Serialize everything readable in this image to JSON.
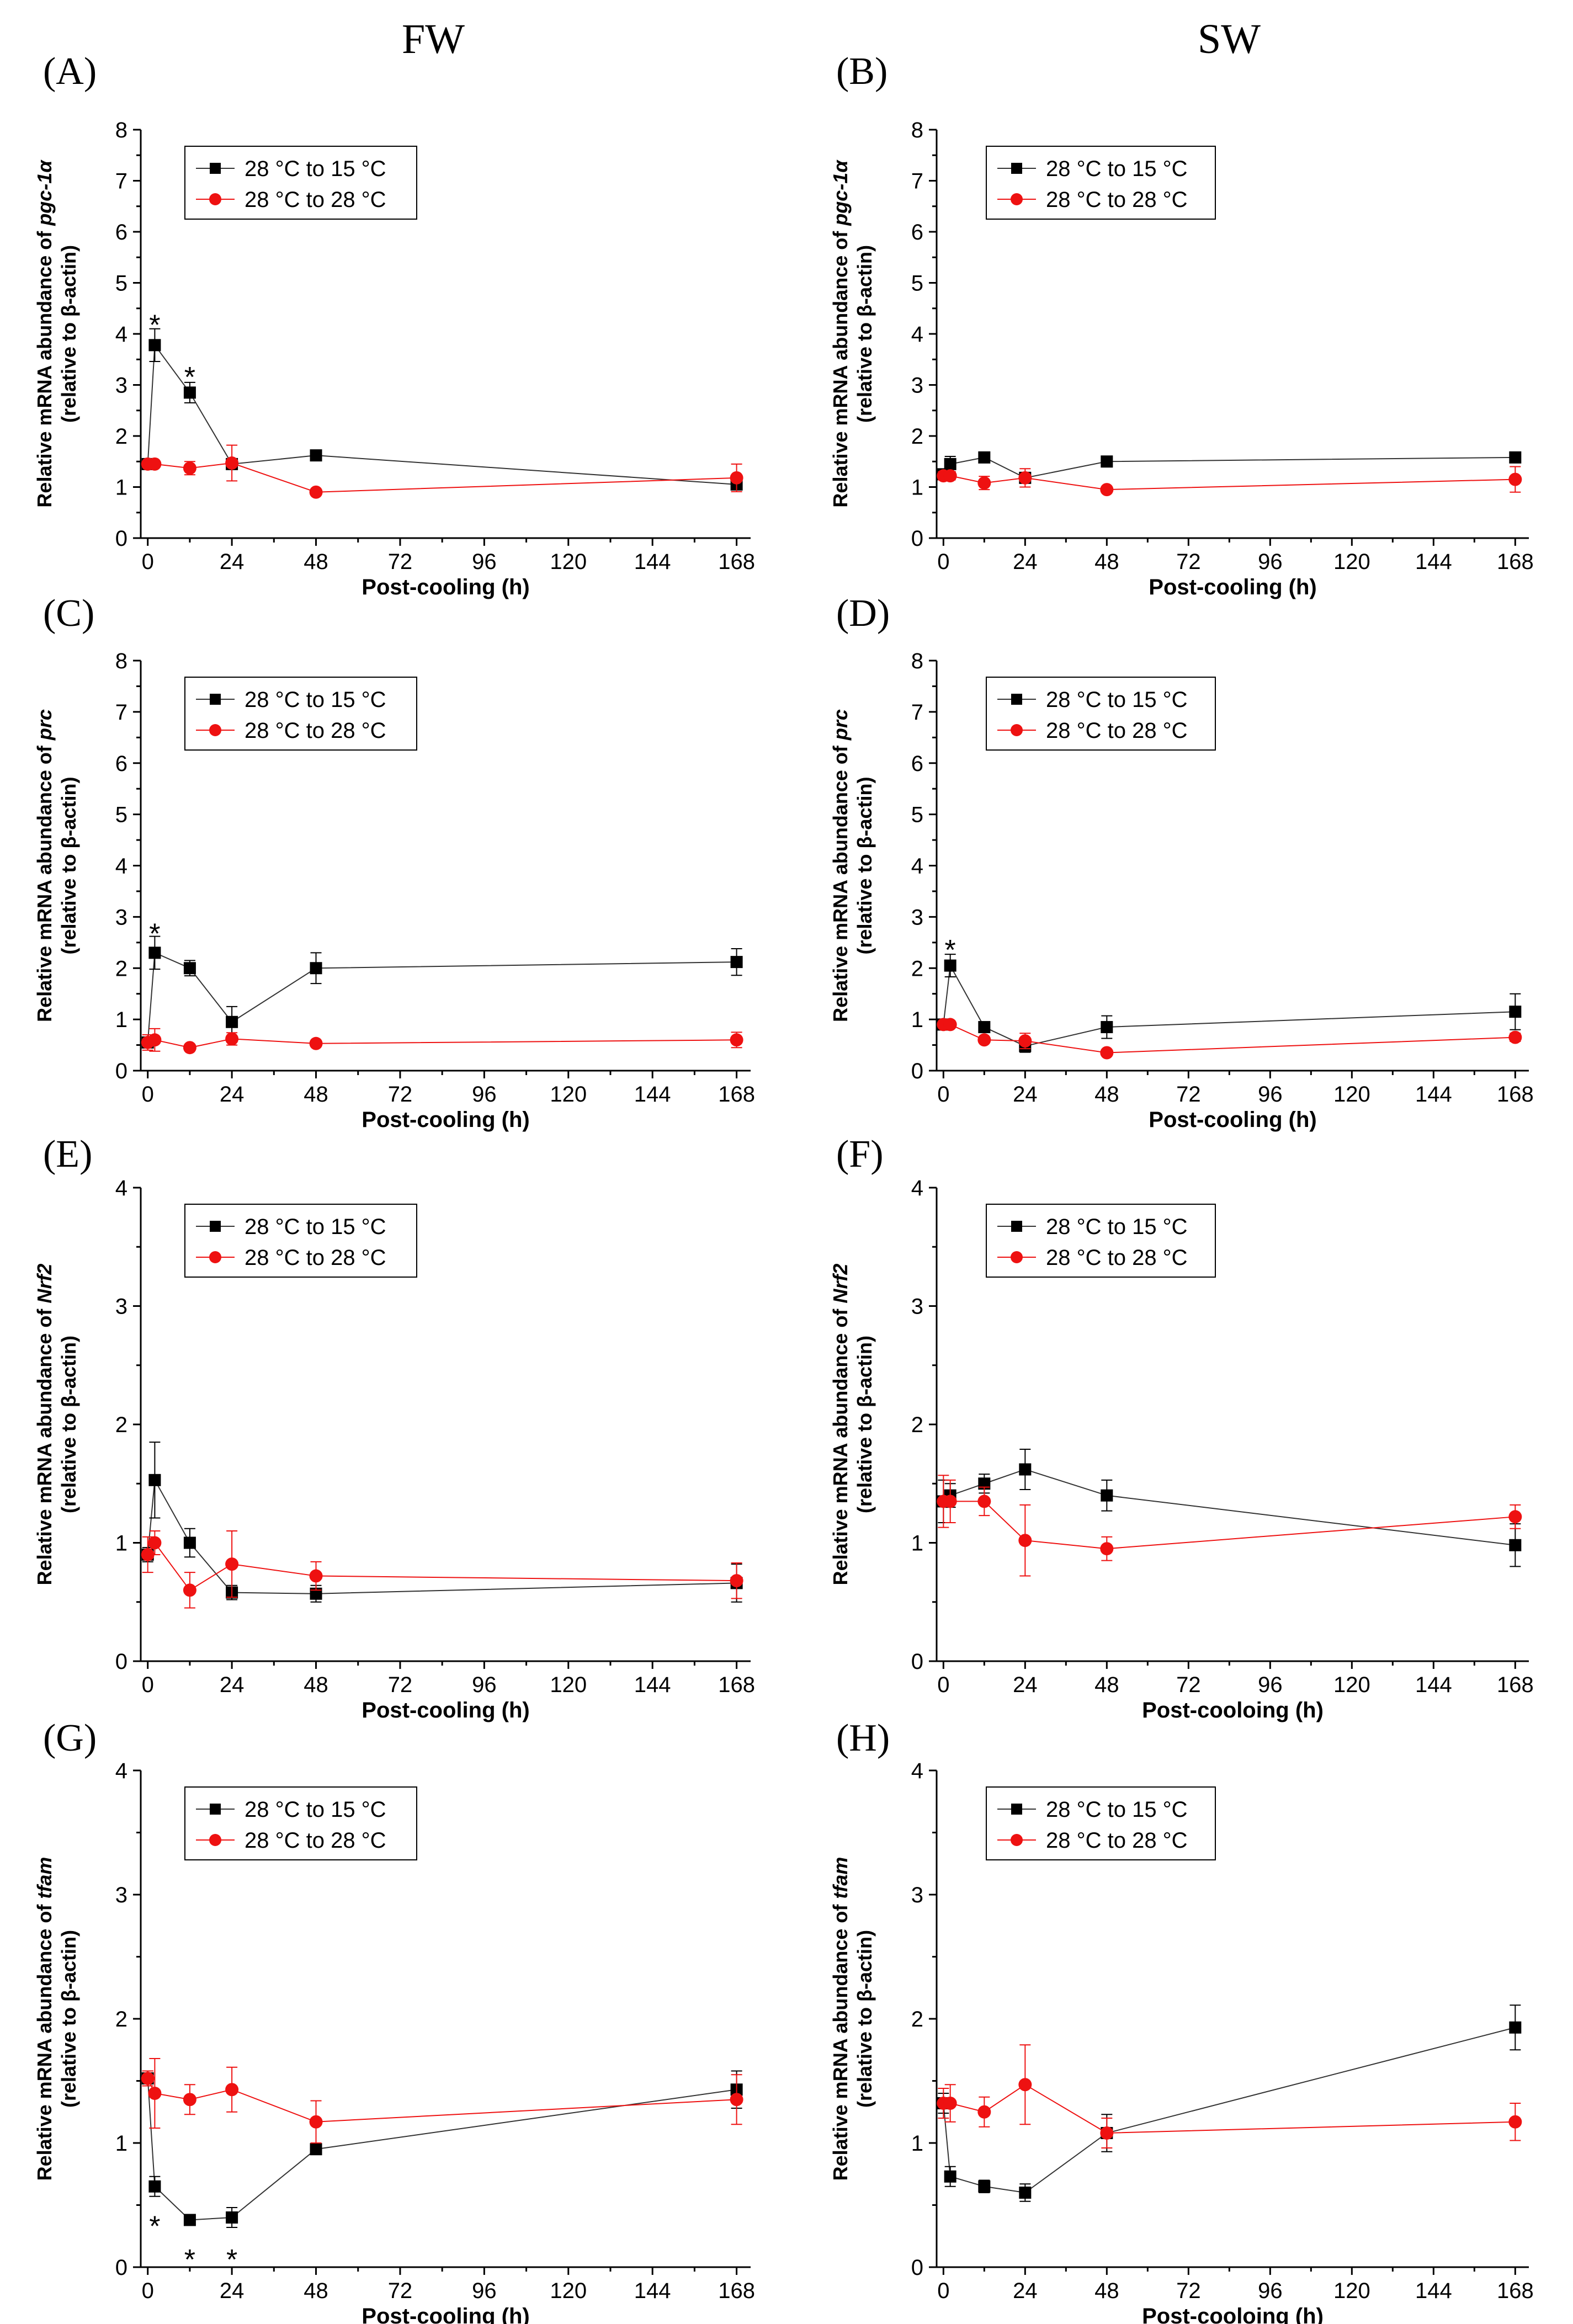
{
  "column_headers": {
    "left": "FW",
    "right": "SW"
  },
  "legend_labels": [
    "28 °C to 15 °C",
    "28 °C to 28 °C"
  ],
  "series_colors": {
    "cooled": "#000000",
    "control": "#ee1111"
  },
  "chart_data": [
    {
      "type": "line",
      "panel_label": "(A)",
      "gene": "pgc-1α",
      "ylabel_prefix": "Relative mRNA abundance of ",
      "ylabel_line2": "(relative to β-actin)",
      "xlabel": "Post-cooling (h)",
      "xlim": [
        -2,
        172
      ],
      "ylim": [
        0,
        8
      ],
      "xticks": [
        0,
        24,
        48,
        72,
        96,
        120,
        144,
        168
      ],
      "yticks": [
        0,
        1,
        2,
        3,
        4,
        5,
        6,
        7,
        8
      ],
      "series": [
        {
          "name": "28 °C to 15 °C",
          "color": "#000000",
          "x": [
            0,
            2,
            12,
            24,
            48,
            168
          ],
          "values": [
            1.45,
            3.78,
            2.85,
            1.45,
            1.62,
            1.05
          ],
          "errors": [
            0.1,
            0.32,
            0.2,
            0.08,
            0.04,
            0.1
          ]
        },
        {
          "name": "28 °C to 28 °C",
          "color": "#ee1111",
          "x": [
            0,
            2,
            12,
            24,
            48,
            168
          ],
          "values": [
            1.45,
            1.45,
            1.37,
            1.47,
            0.9,
            1.18
          ],
          "errors": [
            0.05,
            0.05,
            0.13,
            0.35,
            0.04,
            0.27
          ]
        }
      ],
      "significance": [
        {
          "x": 2,
          "y": 4.22,
          "text": "*"
        },
        {
          "x": 12,
          "y": 3.2,
          "text": "*"
        }
      ]
    },
    {
      "type": "line",
      "panel_label": "(B)",
      "gene": "pgc-1α",
      "ylabel_prefix": "Relative mRNA abundance of ",
      "ylabel_line2": "(relative to β-actin)",
      "xlabel": "Post-cooling (h)",
      "xlim": [
        -2,
        172
      ],
      "ylim": [
        0,
        8
      ],
      "xticks": [
        0,
        24,
        48,
        72,
        96,
        120,
        144,
        168
      ],
      "yticks": [
        0,
        1,
        2,
        3,
        4,
        5,
        6,
        7,
        8
      ],
      "series": [
        {
          "name": "28 °C to 15 °C",
          "color": "#000000",
          "x": [
            0,
            2,
            12,
            24,
            48,
            168
          ],
          "values": [
            1.25,
            1.45,
            1.58,
            1.18,
            1.5,
            1.58
          ],
          "errors": [
            0.1,
            0.15,
            0.08,
            0.05,
            0.07,
            0.1
          ]
        },
        {
          "name": "28 °C to 28 °C",
          "color": "#ee1111",
          "x": [
            0,
            2,
            12,
            24,
            48,
            168
          ],
          "values": [
            1.22,
            1.22,
            1.08,
            1.18,
            0.95,
            1.15
          ],
          "errors": [
            0.08,
            0.08,
            0.13,
            0.18,
            0.04,
            0.25
          ]
        }
      ],
      "significance": []
    },
    {
      "type": "line",
      "panel_label": "(C)",
      "gene": "prc",
      "ylabel_prefix": "Relative mRNA abundance of ",
      "ylabel_line2": "(relative to β-actin)",
      "xlabel": "Post-cooling (h)",
      "xlim": [
        -2,
        172
      ],
      "ylim": [
        0,
        8
      ],
      "xticks": [
        0,
        24,
        48,
        72,
        96,
        120,
        144,
        168
      ],
      "yticks": [
        0,
        1,
        2,
        3,
        4,
        5,
        6,
        7,
        8
      ],
      "series": [
        {
          "name": "28 °C to 15 °C",
          "color": "#000000",
          "x": [
            0,
            2,
            12,
            24,
            48,
            168
          ],
          "values": [
            0.55,
            2.3,
            2.0,
            0.95,
            2.0,
            2.12
          ],
          "errors": [
            0.06,
            0.32,
            0.15,
            0.3,
            0.3,
            0.26
          ]
        },
        {
          "name": "28 °C to 28 °C",
          "color": "#ee1111",
          "x": [
            0,
            2,
            12,
            24,
            48,
            168
          ],
          "values": [
            0.55,
            0.6,
            0.45,
            0.62,
            0.53,
            0.6
          ],
          "errors": [
            0.15,
            0.22,
            0.06,
            0.12,
            0.05,
            0.15
          ]
        }
      ],
      "significance": [
        {
          "x": 2,
          "y": 2.72,
          "text": "*"
        }
      ]
    },
    {
      "type": "line",
      "panel_label": "(D)",
      "gene": "prc",
      "ylabel_prefix": "Relative mRNA abundance of ",
      "ylabel_line2": "(relative to β-actin)",
      "xlabel": "Post-cooling (h)",
      "xlim": [
        -2,
        172
      ],
      "ylim": [
        0,
        8
      ],
      "xticks": [
        0,
        24,
        48,
        72,
        96,
        120,
        144,
        168
      ],
      "yticks": [
        0,
        1,
        2,
        3,
        4,
        5,
        6,
        7,
        8
      ],
      "series": [
        {
          "name": "28 °C to 15 °C",
          "color": "#000000",
          "x": [
            0,
            2,
            12,
            24,
            48,
            168
          ],
          "values": [
            0.9,
            2.05,
            0.85,
            0.48,
            0.85,
            1.15
          ],
          "errors": [
            0.06,
            0.22,
            0.1,
            0.12,
            0.22,
            0.35
          ]
        },
        {
          "name": "28 °C to 28 °C",
          "color": "#ee1111",
          "x": [
            0,
            2,
            12,
            24,
            48,
            168
          ],
          "values": [
            0.9,
            0.9,
            0.6,
            0.58,
            0.35,
            0.65
          ],
          "errors": [
            0.06,
            0.06,
            0.05,
            0.15,
            0.04,
            0.08
          ]
        }
      ],
      "significance": [
        {
          "x": 2,
          "y": 2.4,
          "text": "*"
        }
      ]
    },
    {
      "type": "line",
      "panel_label": "(E)",
      "gene": "Nrf2",
      "ylabel_prefix": "Relative mRNA abundance of ",
      "ylabel_line2": "(relative to β-actin)",
      "xlabel": "Post-cooling (h)",
      "xlim": [
        -2,
        172
      ],
      "ylim": [
        0,
        4
      ],
      "xticks": [
        0,
        24,
        48,
        72,
        96,
        120,
        144,
        168
      ],
      "yticks": [
        0,
        1,
        2,
        3,
        4
      ],
      "series": [
        {
          "name": "28 °C to 15 °C",
          "color": "#000000",
          "x": [
            0,
            2,
            12,
            24,
            48,
            168
          ],
          "values": [
            0.9,
            1.53,
            1.0,
            0.58,
            0.57,
            0.66
          ],
          "errors": [
            0.06,
            0.32,
            0.12,
            0.06,
            0.07,
            0.16
          ]
        },
        {
          "name": "28 °C to 28 °C",
          "color": "#ee1111",
          "x": [
            0,
            2,
            12,
            24,
            48,
            168
          ],
          "values": [
            0.9,
            1.0,
            0.6,
            0.82,
            0.72,
            0.68
          ],
          "errors": [
            0.15,
            0.1,
            0.15,
            0.28,
            0.12,
            0.15
          ]
        }
      ],
      "significance": []
    },
    {
      "type": "line",
      "panel_label": "(F)",
      "gene": "Nrf2",
      "ylabel_prefix": "Relative mRNA abundance of ",
      "ylabel_line2": "(relative to β-actin)",
      "xlabel": "Post-cooloing (h)",
      "xlim": [
        -2,
        172
      ],
      "ylim": [
        0,
        4
      ],
      "xticks": [
        0,
        24,
        48,
        72,
        96,
        120,
        144,
        168
      ],
      "yticks": [
        0,
        1,
        2,
        3,
        4
      ],
      "series": [
        {
          "name": "28 °C to 15 °C",
          "color": "#000000",
          "x": [
            0,
            2,
            12,
            24,
            48,
            168
          ],
          "values": [
            1.35,
            1.4,
            1.5,
            1.62,
            1.4,
            0.98
          ],
          "errors": [
            0.18,
            0.1,
            0.08,
            0.17,
            0.13,
            0.18
          ]
        },
        {
          "name": "28 °C to 28 °C",
          "color": "#ee1111",
          "x": [
            0,
            2,
            12,
            24,
            48,
            168
          ],
          "values": [
            1.35,
            1.35,
            1.35,
            1.02,
            0.95,
            1.22
          ],
          "errors": [
            0.22,
            0.18,
            0.12,
            0.3,
            0.1,
            0.1
          ]
        }
      ],
      "significance": []
    },
    {
      "type": "line",
      "panel_label": "(G)",
      "gene": "tfam",
      "ylabel_prefix": "Relative mRNA abundance of ",
      "ylabel_line2": "(relative to β-actin)",
      "xlabel": "Post-cooling (h)",
      "xlim": [
        -2,
        172
      ],
      "ylim": [
        0,
        4
      ],
      "xticks": [
        0,
        24,
        48,
        72,
        96,
        120,
        144,
        168
      ],
      "yticks": [
        0,
        1,
        2,
        3,
        4
      ],
      "series": [
        {
          "name": "28 °C to 15 °C",
          "color": "#000000",
          "x": [
            0,
            2,
            12,
            24,
            48,
            168
          ],
          "values": [
            1.52,
            0.65,
            0.38,
            0.4,
            0.95,
            1.43
          ],
          "errors": [
            0.06,
            0.08,
            0.04,
            0.08,
            0.04,
            0.15
          ]
        },
        {
          "name": "28 °C to 28 °C",
          "color": "#ee1111",
          "x": [
            0,
            2,
            12,
            24,
            48,
            168
          ],
          "values": [
            1.52,
            1.4,
            1.35,
            1.43,
            1.17,
            1.35
          ],
          "errors": [
            0.06,
            0.28,
            0.12,
            0.18,
            0.17,
            0.2
          ]
        }
      ],
      "significance": [
        {
          "x": 2,
          "y": 0.35,
          "text": "*"
        },
        {
          "x": 12,
          "y": 0.08,
          "text": "*"
        },
        {
          "x": 24,
          "y": 0.08,
          "text": "*"
        }
      ]
    },
    {
      "type": "line",
      "panel_label": "(H)",
      "gene": "tfam",
      "ylabel_prefix": "Relative mRNA abundance of ",
      "ylabel_line2": "(relative to β-actin)",
      "xlabel": "Post-cooloing (h)",
      "xlim": [
        -2,
        172
      ],
      "ylim": [
        0,
        4
      ],
      "xticks": [
        0,
        24,
        48,
        72,
        96,
        120,
        144,
        168
      ],
      "yticks": [
        0,
        1,
        2,
        3,
        4
      ],
      "series": [
        {
          "name": "28 °C to 15 °C",
          "color": "#000000",
          "x": [
            0,
            2,
            12,
            24,
            48,
            168
          ],
          "values": [
            1.32,
            0.73,
            0.65,
            0.6,
            1.08,
            1.93
          ],
          "errors": [
            0.08,
            0.08,
            0.05,
            0.07,
            0.15,
            0.18
          ]
        },
        {
          "name": "28 °C to 28 °C",
          "color": "#ee1111",
          "x": [
            0,
            2,
            12,
            24,
            48,
            168
          ],
          "values": [
            1.32,
            1.32,
            1.25,
            1.47,
            1.08,
            1.17
          ],
          "errors": [
            0.12,
            0.15,
            0.12,
            0.32,
            0.12,
            0.15
          ]
        }
      ],
      "significance": []
    }
  ]
}
